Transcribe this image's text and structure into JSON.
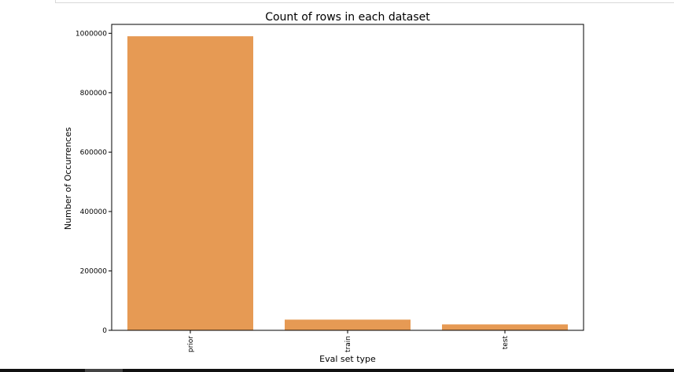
{
  "chart_data": {
    "type": "bar",
    "title": "Count of rows in each dataset",
    "xlabel": "Eval set type",
    "ylabel": "Number of Occurrences",
    "categories": [
      "prior",
      "train",
      "test"
    ],
    "values": [
      990000,
      36000,
      20000
    ],
    "ylim": [
      0,
      1030000
    ],
    "yticks": [
      0,
      200000,
      400000,
      600000,
      800000,
      1000000
    ],
    "ytick_labels": [
      "0",
      "200000",
      "400000",
      "600000",
      "800000",
      "1000000"
    ],
    "bar_color": "#e69a54",
    "grid": false
  }
}
